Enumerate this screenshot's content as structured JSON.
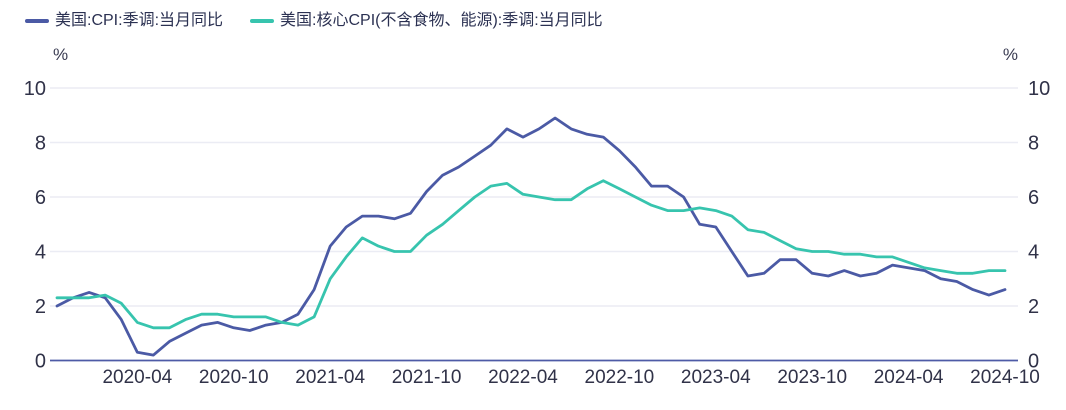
{
  "page": {
    "background": "#ffffff"
  },
  "legend": {
    "items": [
      {
        "label": "美国:CPI:季调:当月同比",
        "color": "#4b5aa5"
      },
      {
        "label": "美国:核心CPI(不含食物、能源):季调:当月同比",
        "color": "#37c4ae"
      }
    ]
  },
  "axis": {
    "left_unit": "%",
    "right_unit": "%"
  },
  "colors": {
    "grid": "#ebecf4",
    "axis_line": "#4e5ba6",
    "tick_text": "#303248"
  },
  "chart_data": {
    "type": "line",
    "title": "",
    "xlabel": "",
    "ylabel": "%",
    "ylim": [
      0,
      10
    ],
    "yticks": [
      0,
      2,
      4,
      6,
      8,
      10
    ],
    "grid": "horizontal",
    "legend_position": "top-left",
    "x": [
      "2019-11",
      "2019-12",
      "2020-01",
      "2020-02",
      "2020-03",
      "2020-04",
      "2020-05",
      "2020-06",
      "2020-07",
      "2020-08",
      "2020-09",
      "2020-10",
      "2020-11",
      "2020-12",
      "2021-01",
      "2021-02",
      "2021-03",
      "2021-04",
      "2021-05",
      "2021-06",
      "2021-07",
      "2021-08",
      "2021-09",
      "2021-10",
      "2021-11",
      "2021-12",
      "2022-01",
      "2022-02",
      "2022-03",
      "2022-04",
      "2022-05",
      "2022-06",
      "2022-07",
      "2022-08",
      "2022-09",
      "2022-10",
      "2022-11",
      "2022-12",
      "2023-01",
      "2023-02",
      "2023-03",
      "2023-04",
      "2023-05",
      "2023-06",
      "2023-07",
      "2023-08",
      "2023-09",
      "2023-10",
      "2023-11",
      "2023-12",
      "2024-01",
      "2024-02",
      "2024-03",
      "2024-04",
      "2024-05",
      "2024-06",
      "2024-07",
      "2024-08",
      "2024-09",
      "2024-10"
    ],
    "x_tick_labels": [
      "2020-04",
      "2020-10",
      "2021-04",
      "2021-10",
      "2022-04",
      "2022-10",
      "2023-04",
      "2023-10",
      "2024-04",
      "2024-10"
    ],
    "series": [
      {
        "name": "美国:CPI:季调:当月同比",
        "color": "#4b5aa5",
        "values": [
          2.0,
          2.3,
          2.5,
          2.3,
          1.5,
          0.3,
          0.2,
          0.7,
          1.0,
          1.3,
          1.4,
          1.2,
          1.1,
          1.3,
          1.4,
          1.7,
          2.6,
          4.2,
          4.9,
          5.3,
          5.3,
          5.2,
          5.4,
          6.2,
          6.8,
          7.1,
          7.5,
          7.9,
          8.5,
          8.2,
          8.5,
          8.9,
          8.5,
          8.3,
          8.2,
          7.7,
          7.1,
          6.4,
          6.4,
          6.0,
          5.0,
          4.9,
          4.0,
          3.1,
          3.2,
          3.7,
          3.7,
          3.2,
          3.1,
          3.3,
          3.1,
          3.2,
          3.5,
          3.4,
          3.3,
          3.0,
          2.9,
          2.6,
          2.4,
          2.6
        ]
      },
      {
        "name": "美国:核心CPI(不含食物、能源):季调:当月同比",
        "color": "#37c4ae",
        "values": [
          2.3,
          2.3,
          2.3,
          2.4,
          2.1,
          1.4,
          1.2,
          1.2,
          1.5,
          1.7,
          1.7,
          1.6,
          1.6,
          1.6,
          1.4,
          1.3,
          1.6,
          3.0,
          3.8,
          4.5,
          4.2,
          4.0,
          4.0,
          4.6,
          5.0,
          5.5,
          6.0,
          6.4,
          6.5,
          6.1,
          6.0,
          5.9,
          5.9,
          6.3,
          6.6,
          6.3,
          6.0,
          5.7,
          5.5,
          5.5,
          5.6,
          5.5,
          5.3,
          4.8,
          4.7,
          4.4,
          4.1,
          4.0,
          4.0,
          3.9,
          3.9,
          3.8,
          3.8,
          3.6,
          3.4,
          3.3,
          3.2,
          3.2,
          3.3,
          3.3
        ]
      }
    ]
  }
}
